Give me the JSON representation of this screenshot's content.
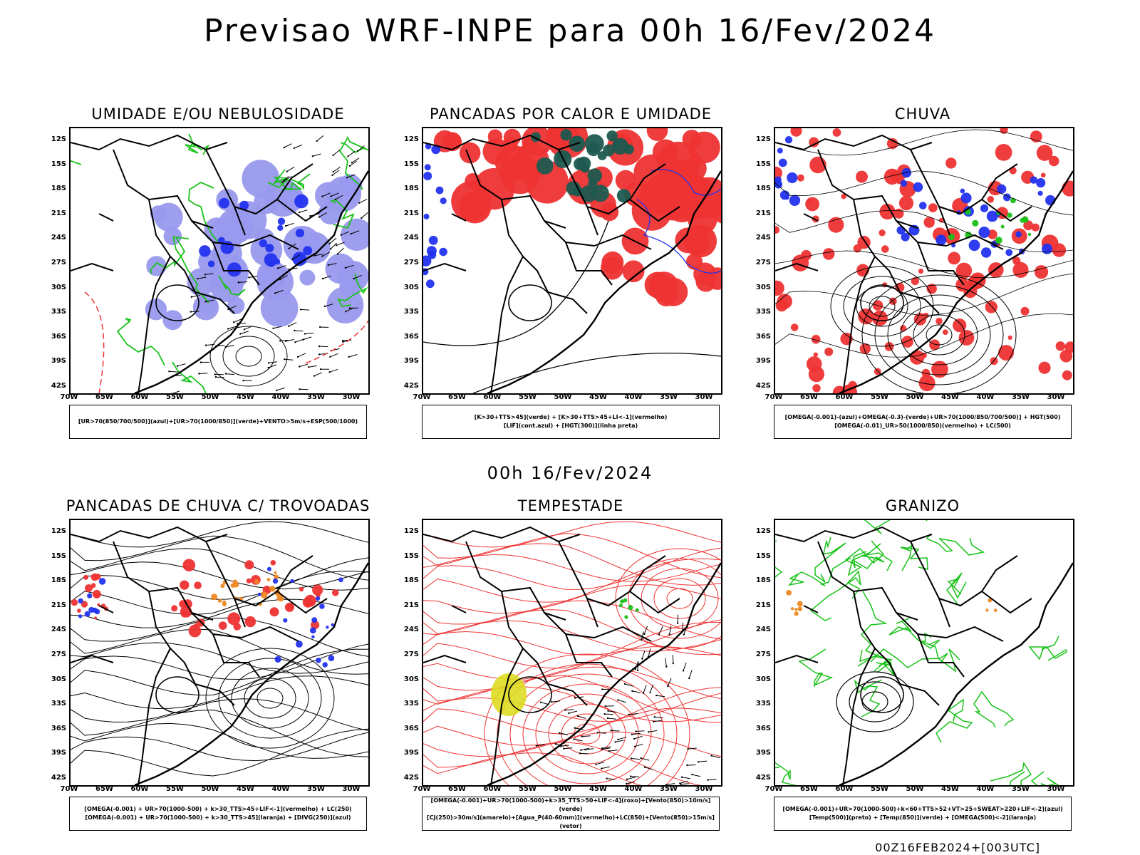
{
  "title": "Previsao WRF-INPE  para 00h 16/Fev/2024",
  "middle_time": "00h 16/Fev/2024",
  "stamp": "00Z16FEB2024+[003UTC]",
  "lat_ticks": [
    "12S",
    "15S",
    "18S",
    "21S",
    "24S",
    "27S",
    "30S",
    "33S",
    "36S",
    "39S",
    "42S"
  ],
  "lon_ticks": [
    "70W",
    "65W",
    "60W",
    "55W",
    "50W",
    "45W",
    "40W",
    "35W",
    "30W"
  ],
  "colors": {
    "green": "#19c219",
    "blue": "#2233ee",
    "red": "#ee3333",
    "darkgreen": "#1e5a50",
    "lavender": "#9999ee",
    "orange": "#ee8822",
    "yellow": "#dddd22",
    "black": "#000000"
  },
  "panels": [
    {
      "title": "UMIDADE E/OU NEBULOSIDADE",
      "legend": [
        "[UR>70(850/700/500)](azul)+[UR>70(1000/850)](verde)+VENTO>5m/s+ESP(500/1000)"
      ]
    },
    {
      "title": "PANCADAS POR CALOR E UMIDADE",
      "legend": [
        "[K>30+TTS>45](verde) + [K>30+TTS>45+LI<-1](vermelho)",
        "[LIF](cont.azul) + [HGT(300)](linha preta)"
      ]
    },
    {
      "title": "CHUVA",
      "legend": [
        "[OMEGA(-0.001)-(azul)+OMEGA(-0.3)-(verde)+UR>70(1000/850/700/500)] + HGT(500)",
        "[OMEGA(-0.01)_UR>50(1000/850)(vermelho) + LC(500)"
      ]
    },
    {
      "title": "PANCADAS DE CHUVA C/ TROVOADAS",
      "legend": [
        "[OMEGA(-0.001) + UR>70(1000-500) + k>30_TTS>45+LIF<-1](vermelho) + LC(250)",
        "[OMEGA(-0.001) + UR>70(1000-500) + k>30_TTS>45](laranja) + [DIVG(250)](azul)"
      ]
    },
    {
      "title": "TEMPESTADE",
      "legend": [
        "[OMEGA(-0.001)+UR>70(1000-500)+k>35_TTS>50+LIF<-4](roxo)+[Vento(850)>10m/s](verde)",
        "[CJ(250)>30m/s](amarelo)+[Agua_P(40-60mm)](vermelho)+LC(850)+[Vento(850)>15m/s](vetor)"
      ]
    },
    {
      "title": "GRANIZO",
      "legend": [
        "[OMEGA(-0.001)+UR>70(1000-500)+k<60+TTS>52+VT>25+SWEAT>220+LIF<-2](azul)",
        "[Temp(500)](preto) + [Temp(850)](verde) + [OMEGA(500)<-2](laranja)"
      ]
    }
  ]
}
